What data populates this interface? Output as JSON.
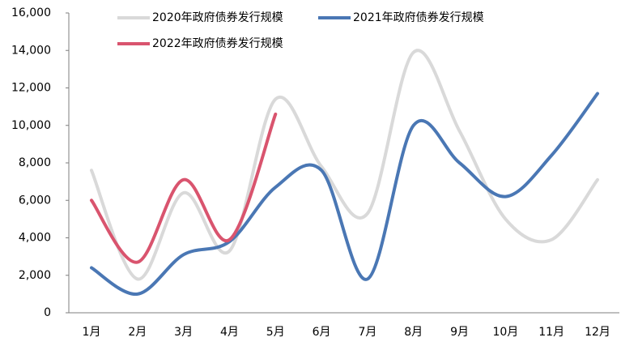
{
  "chart_data": {
    "type": "line",
    "categories": [
      "1月",
      "2月",
      "3月",
      "4月",
      "5月",
      "6月",
      "7月",
      "8月",
      "9月",
      "10月",
      "11月",
      "12月"
    ],
    "series": [
      {
        "name": "2020年政府债券发行规模",
        "color": "#d9d9d9",
        "values": [
          7600,
          1800,
          6400,
          3300,
          11400,
          7800,
          5300,
          13900,
          9700,
          5000,
          3900,
          7100
        ]
      },
      {
        "name": "2021年政府债券发行规模",
        "color": "#4a77b4",
        "values": [
          2400,
          1000,
          3100,
          3800,
          6700,
          7600,
          1800,
          10000,
          8000,
          6200,
          8400,
          11700
        ]
      },
      {
        "name": "2022年政府债券发行规模",
        "color": "#d9546e",
        "values": [
          6000,
          2700,
          7100,
          3900,
          10600,
          null,
          null,
          null,
          null,
          null,
          null,
          null
        ]
      }
    ],
    "ylim": [
      0,
      16000
    ],
    "yticks": [
      0,
      {
        "value": 2000,
        "label": "2,000"
      },
      {
        "value": 4000,
        "label": "4,000"
      },
      {
        "value": 6000,
        "label": "6,000"
      },
      {
        "value": 8000,
        "label": "8,000"
      },
      {
        "value": 10000,
        "label": "10,000"
      },
      {
        "value": 12000,
        "label": "12,000"
      },
      {
        "value": 14000,
        "label": "14,000"
      },
      {
        "value": 16000,
        "label": "16,000"
      }
    ],
    "smooth": true
  }
}
